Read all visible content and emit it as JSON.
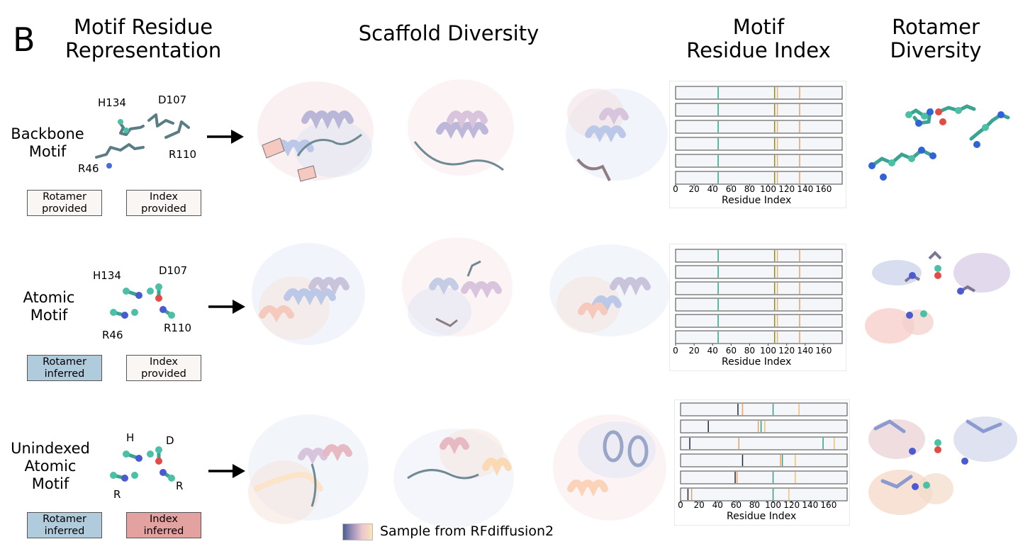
{
  "panel_letter": "B",
  "headers": {
    "motif_rep_line1": "Motif Residue",
    "motif_rep_line2": "Representation",
    "scaffold": "Scaffold Diversity",
    "motif_index_line1": "Motif",
    "motif_index_line2": "Residue Index",
    "rotamer_line1": "Rotamer",
    "rotamer_line2": "Diversity"
  },
  "rows": [
    {
      "label_lines": [
        "Backbone",
        "Motif"
      ],
      "residues": [
        "H134",
        "D107",
        "R110",
        "R46"
      ],
      "tag_rotamer": [
        "Rotamer",
        "provided"
      ],
      "tag_index": [
        "Index",
        "provided"
      ]
    },
    {
      "label_lines": [
        "Atomic",
        "Motif"
      ],
      "residues": [
        "H134",
        "D107",
        "R46",
        "R110"
      ],
      "tag_rotamer": [
        "Rotamer",
        "inferred"
      ],
      "tag_index": [
        "Index",
        "provided"
      ]
    },
    {
      "label_lines": [
        "Unindexed",
        "Atomic",
        "Motif"
      ],
      "residues": [
        "H",
        "D",
        "R",
        "R"
      ],
      "tag_rotamer": [
        "Rotamer",
        "inferred"
      ],
      "tag_index": [
        "Index",
        "inferred"
      ]
    }
  ],
  "legend": {
    "text": "Sample from RFdiffusion2"
  },
  "chart_data": [
    {
      "type": "residue-index-strip",
      "xlabel": "Residue Index",
      "xlim": [
        0,
        180
      ],
      "ticks": [
        0,
        20,
        40,
        60,
        80,
        100,
        120,
        140,
        160
      ],
      "tick_labels": [
        "0",
        "20",
        "40",
        "60",
        "80",
        "100",
        "120",
        "140",
        "160"
      ],
      "samples": [
        [
          {
            "index": 46,
            "residue": "R46"
          },
          {
            "index": 107,
            "residue": "D107"
          },
          {
            "index": 110,
            "residue": "R110"
          },
          {
            "index": 134,
            "residue": "H134"
          }
        ],
        [
          {
            "index": 46,
            "residue": "R46"
          },
          {
            "index": 107,
            "residue": "D107"
          },
          {
            "index": 110,
            "residue": "R110"
          },
          {
            "index": 134,
            "residue": "H134"
          }
        ],
        [
          {
            "index": 46,
            "residue": "R46"
          },
          {
            "index": 107,
            "residue": "D107"
          },
          {
            "index": 110,
            "residue": "R110"
          },
          {
            "index": 134,
            "residue": "H134"
          }
        ],
        [
          {
            "index": 46,
            "residue": "R46"
          },
          {
            "index": 107,
            "residue": "D107"
          },
          {
            "index": 110,
            "residue": "R110"
          },
          {
            "index": 134,
            "residue": "H134"
          }
        ],
        [
          {
            "index": 46,
            "residue": "R46"
          },
          {
            "index": 107,
            "residue": "D107"
          },
          {
            "index": 110,
            "residue": "R110"
          },
          {
            "index": 134,
            "residue": "H134"
          }
        ],
        [
          {
            "index": 46,
            "residue": "R46"
          },
          {
            "index": 107,
            "residue": "D107"
          },
          {
            "index": 110,
            "residue": "R110"
          },
          {
            "index": 134,
            "residue": "H134"
          }
        ]
      ]
    },
    {
      "type": "residue-index-strip",
      "xlabel": "Residue Index",
      "xlim": [
        0,
        180
      ],
      "ticks": [
        0,
        20,
        40,
        60,
        80,
        100,
        120,
        140,
        160
      ],
      "tick_labels": [
        "0",
        "20",
        "40",
        "60",
        "80",
        "100",
        "120",
        "140",
        "160"
      ],
      "samples": [
        [
          {
            "index": 46,
            "residue": "R46"
          },
          {
            "index": 107,
            "residue": "D107"
          },
          {
            "index": 110,
            "residue": "R110"
          },
          {
            "index": 134,
            "residue": "H134"
          }
        ],
        [
          {
            "index": 46,
            "residue": "R46"
          },
          {
            "index": 107,
            "residue": "D107"
          },
          {
            "index": 110,
            "residue": "R110"
          },
          {
            "index": 134,
            "residue": "H134"
          }
        ],
        [
          {
            "index": 46,
            "residue": "R46"
          },
          {
            "index": 107,
            "residue": "D107"
          },
          {
            "index": 110,
            "residue": "R110"
          },
          {
            "index": 134,
            "residue": "H134"
          }
        ],
        [
          {
            "index": 46,
            "residue": "R46"
          },
          {
            "index": 107,
            "residue": "D107"
          },
          {
            "index": 110,
            "residue": "R110"
          },
          {
            "index": 134,
            "residue": "H134"
          }
        ],
        [
          {
            "index": 46,
            "residue": "R46"
          },
          {
            "index": 107,
            "residue": "D107"
          },
          {
            "index": 110,
            "residue": "R110"
          },
          {
            "index": 134,
            "residue": "H134"
          }
        ],
        [
          {
            "index": 46,
            "residue": "R46"
          },
          {
            "index": 107,
            "residue": "D107"
          },
          {
            "index": 110,
            "residue": "R110"
          },
          {
            "index": 134,
            "residue": "H134"
          }
        ]
      ]
    },
    {
      "type": "residue-index-strip",
      "xlabel": "Residue Index",
      "xlim": [
        0,
        180
      ],
      "ticks": [
        0,
        20,
        40,
        60,
        80,
        100,
        120,
        140,
        160
      ],
      "tick_labels": [
        "0",
        "20",
        "40",
        "60",
        "80",
        "100",
        "120",
        "140",
        "160"
      ],
      "samples": [
        [
          {
            "index": 62,
            "residue": "H"
          },
          {
            "index": 67,
            "residue": "D"
          },
          {
            "index": 100,
            "residue": "R"
          },
          {
            "index": 128,
            "residue": "R"
          }
        ],
        [
          {
            "index": 30,
            "residue": "H"
          },
          {
            "index": 84,
            "residue": "R"
          },
          {
            "index": 87,
            "residue": "R"
          },
          {
            "index": 91,
            "residue": "D"
          }
        ],
        [
          {
            "index": 10,
            "residue": "H"
          },
          {
            "index": 63,
            "residue": "D"
          },
          {
            "index": 154,
            "residue": "R"
          },
          {
            "index": 166,
            "residue": "R"
          }
        ],
        [
          {
            "index": 67,
            "residue": "H"
          },
          {
            "index": 108,
            "residue": "R"
          },
          {
            "index": 110,
            "residue": "R"
          },
          {
            "index": 124,
            "residue": "D"
          }
        ],
        [
          {
            "index": 59,
            "residue": "D"
          },
          {
            "index": 61,
            "residue": "H"
          },
          {
            "index": 100,
            "residue": "R"
          },
          {
            "index": 124,
            "residue": "R"
          }
        ],
        [
          {
            "index": 8,
            "residue": "H"
          },
          {
            "index": 12,
            "residue": "D"
          },
          {
            "index": 100,
            "residue": "R"
          },
          {
            "index": 117,
            "residue": "R"
          }
        ]
      ]
    }
  ]
}
